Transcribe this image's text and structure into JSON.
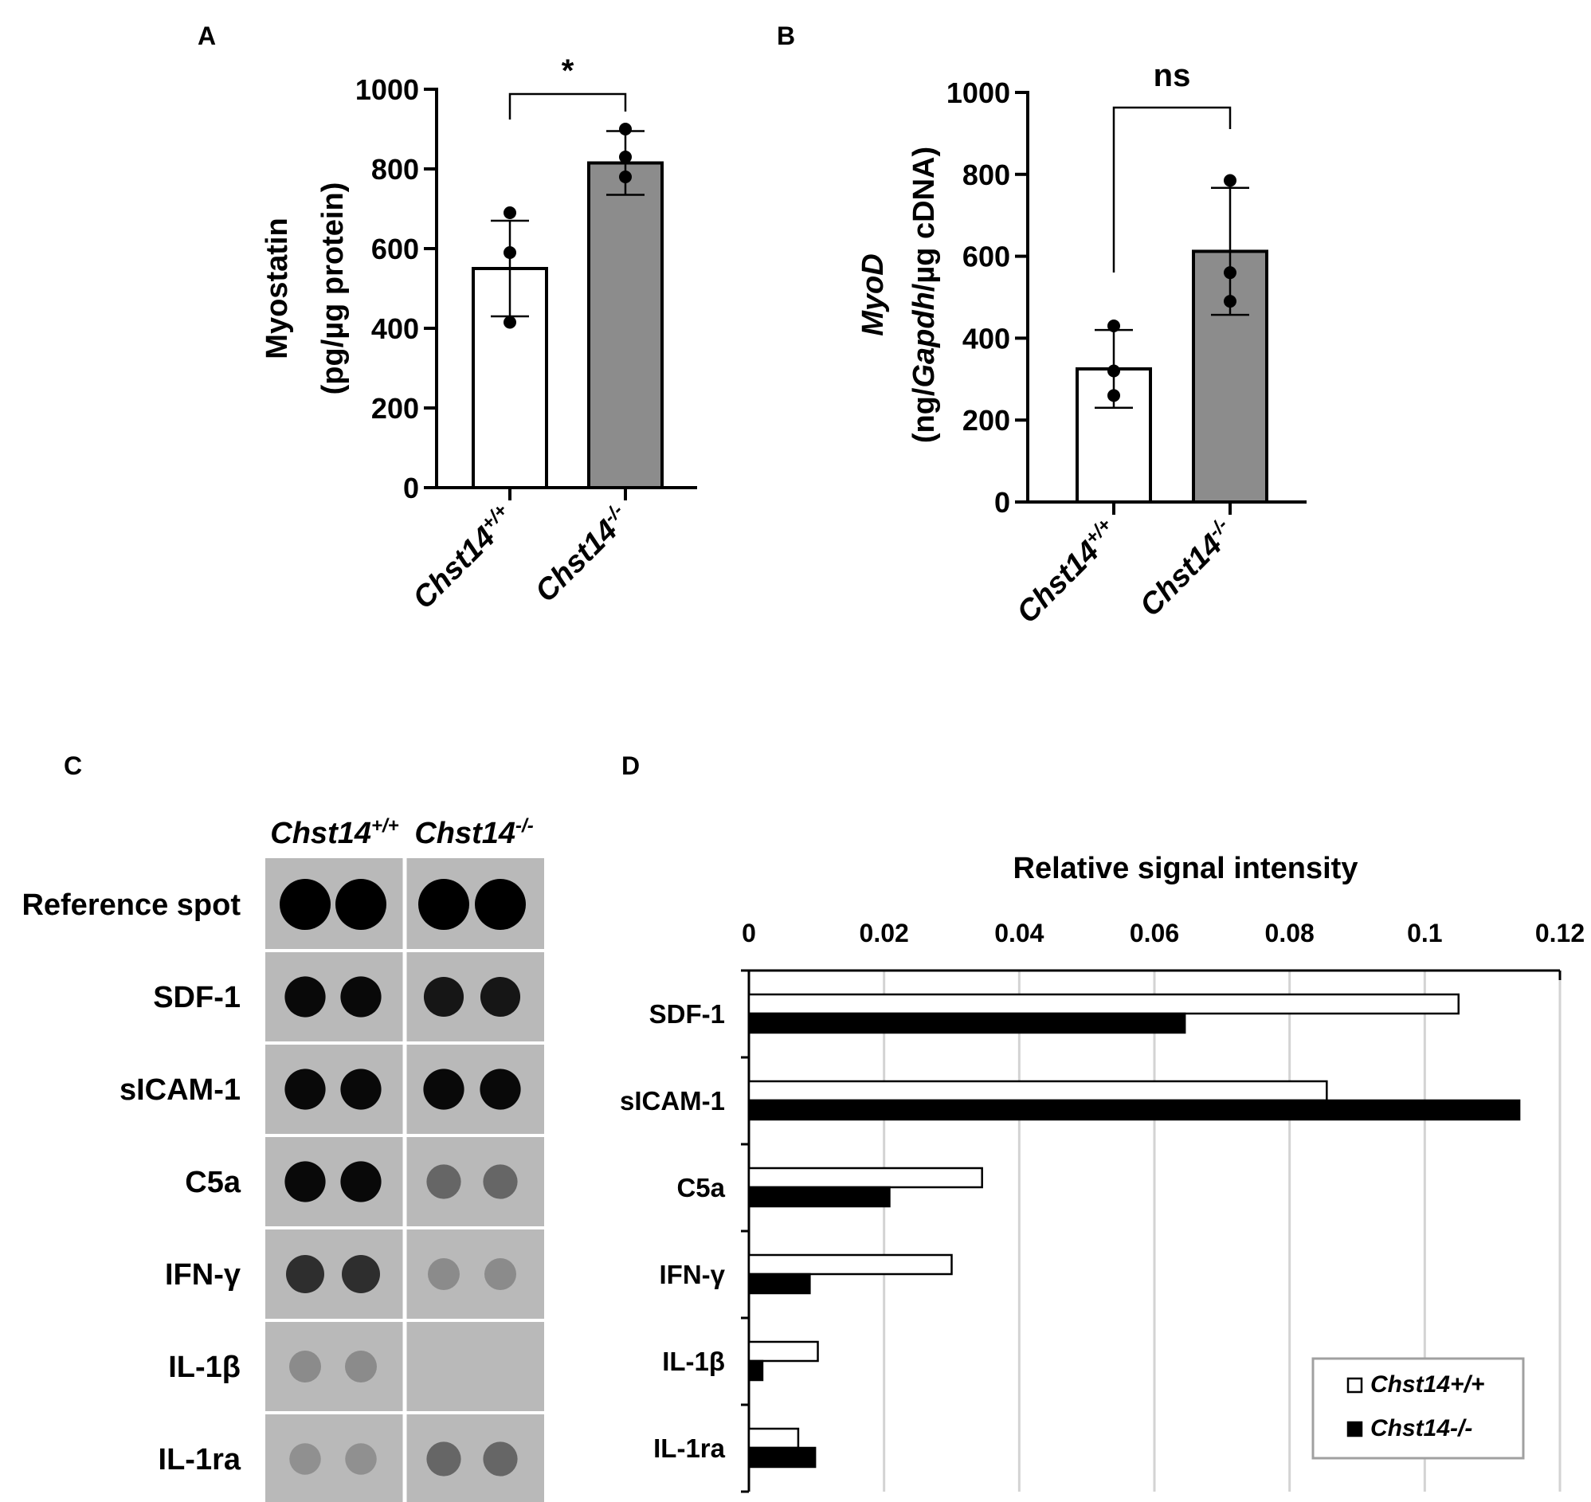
{
  "panels": {
    "a": "A",
    "b": "B",
    "c": "C",
    "d": "D"
  },
  "chart_data": [
    {
      "panel": "A",
      "type": "bar",
      "categories": [
        "Chst14+/+",
        "Chst14-/-"
      ],
      "category_base": "Chst14",
      "category_superscripts": [
        "+/+",
        "-/-"
      ],
      "values": [
        550,
        815
      ],
      "error": [
        120,
        80
      ],
      "points": [
        [
          690,
          590,
          415
        ],
        [
          900,
          830,
          780
        ]
      ],
      "bar_colors": [
        "#ffffff",
        "#8c8c8c"
      ],
      "ylabel_line1": "Myostatin",
      "ylabel_line2": "(pg/µg protein)",
      "ylim": [
        0,
        1000
      ],
      "yticks": [
        0,
        200,
        400,
        600,
        800,
        1000
      ],
      "significance": "*"
    },
    {
      "panel": "B",
      "type": "bar",
      "categories": [
        "Chst14+/+",
        "Chst14-/-"
      ],
      "category_base": "Chst14",
      "category_superscripts": [
        "+/+",
        "-/-"
      ],
      "values": [
        325,
        612
      ],
      "error": [
        95,
        155
      ],
      "points": [
        [
          430,
          320,
          260
        ],
        [
          785,
          560,
          490
        ]
      ],
      "bar_colors": [
        "#ffffff",
        "#8c8c8c"
      ],
      "ylabel_line1_italic": "MyoD",
      "ylabel_line2_parts": [
        "(ng/",
        "Gapdh",
        "/µg cDNA)"
      ],
      "ylim": [
        0,
        1000
      ],
      "yticks": [
        0,
        200,
        400,
        600,
        800,
        1000
      ],
      "significance": "ns"
    },
    {
      "panel": "D",
      "type": "bar",
      "orientation": "horizontal",
      "title": "Relative signal intensity",
      "categories": [
        "SDF-1",
        "sICAM-1",
        "C5a",
        "IFN-γ",
        "IL-1β",
        "IL-1ra"
      ],
      "series": [
        {
          "name": "Chst14+/+",
          "color": "#ffffff",
          "values": [
            0.105,
            0.0855,
            0.0345,
            0.03,
            0.0102,
            0.0073
          ]
        },
        {
          "name": "Chst14-/-",
          "color": "#000000",
          "values": [
            0.0645,
            0.114,
            0.0208,
            0.009,
            0.002,
            0.0098
          ]
        }
      ],
      "xlim": [
        0,
        0.12
      ],
      "xticks": [
        "0",
        "0.02",
        "0.04",
        "0.06",
        "0.08",
        "0.1",
        "0.12"
      ],
      "grid": true,
      "legend_position": "bottom-right"
    }
  ],
  "blot": {
    "column_labels": [
      "Chst14",
      "Chst14"
    ],
    "column_superscripts": [
      "+/+",
      "-/-"
    ],
    "rows": [
      {
        "label": "Reference spot",
        "wt": 1.0,
        "ko": 1.0
      },
      {
        "label": "SDF-1",
        "wt": 0.95,
        "ko": 0.88
      },
      {
        "label": "sICAM-1",
        "wt": 0.95,
        "ko": 0.95
      },
      {
        "label": "C5a",
        "wt": 0.95,
        "ko": 0.45
      },
      {
        "label": "IFN-γ",
        "wt": 0.75,
        "ko": 0.25
      },
      {
        "label": "IL-1β",
        "wt": 0.25,
        "ko": 0.0
      },
      {
        "label": "IL-1ra",
        "wt": 0.22,
        "ko": 0.45
      }
    ]
  }
}
